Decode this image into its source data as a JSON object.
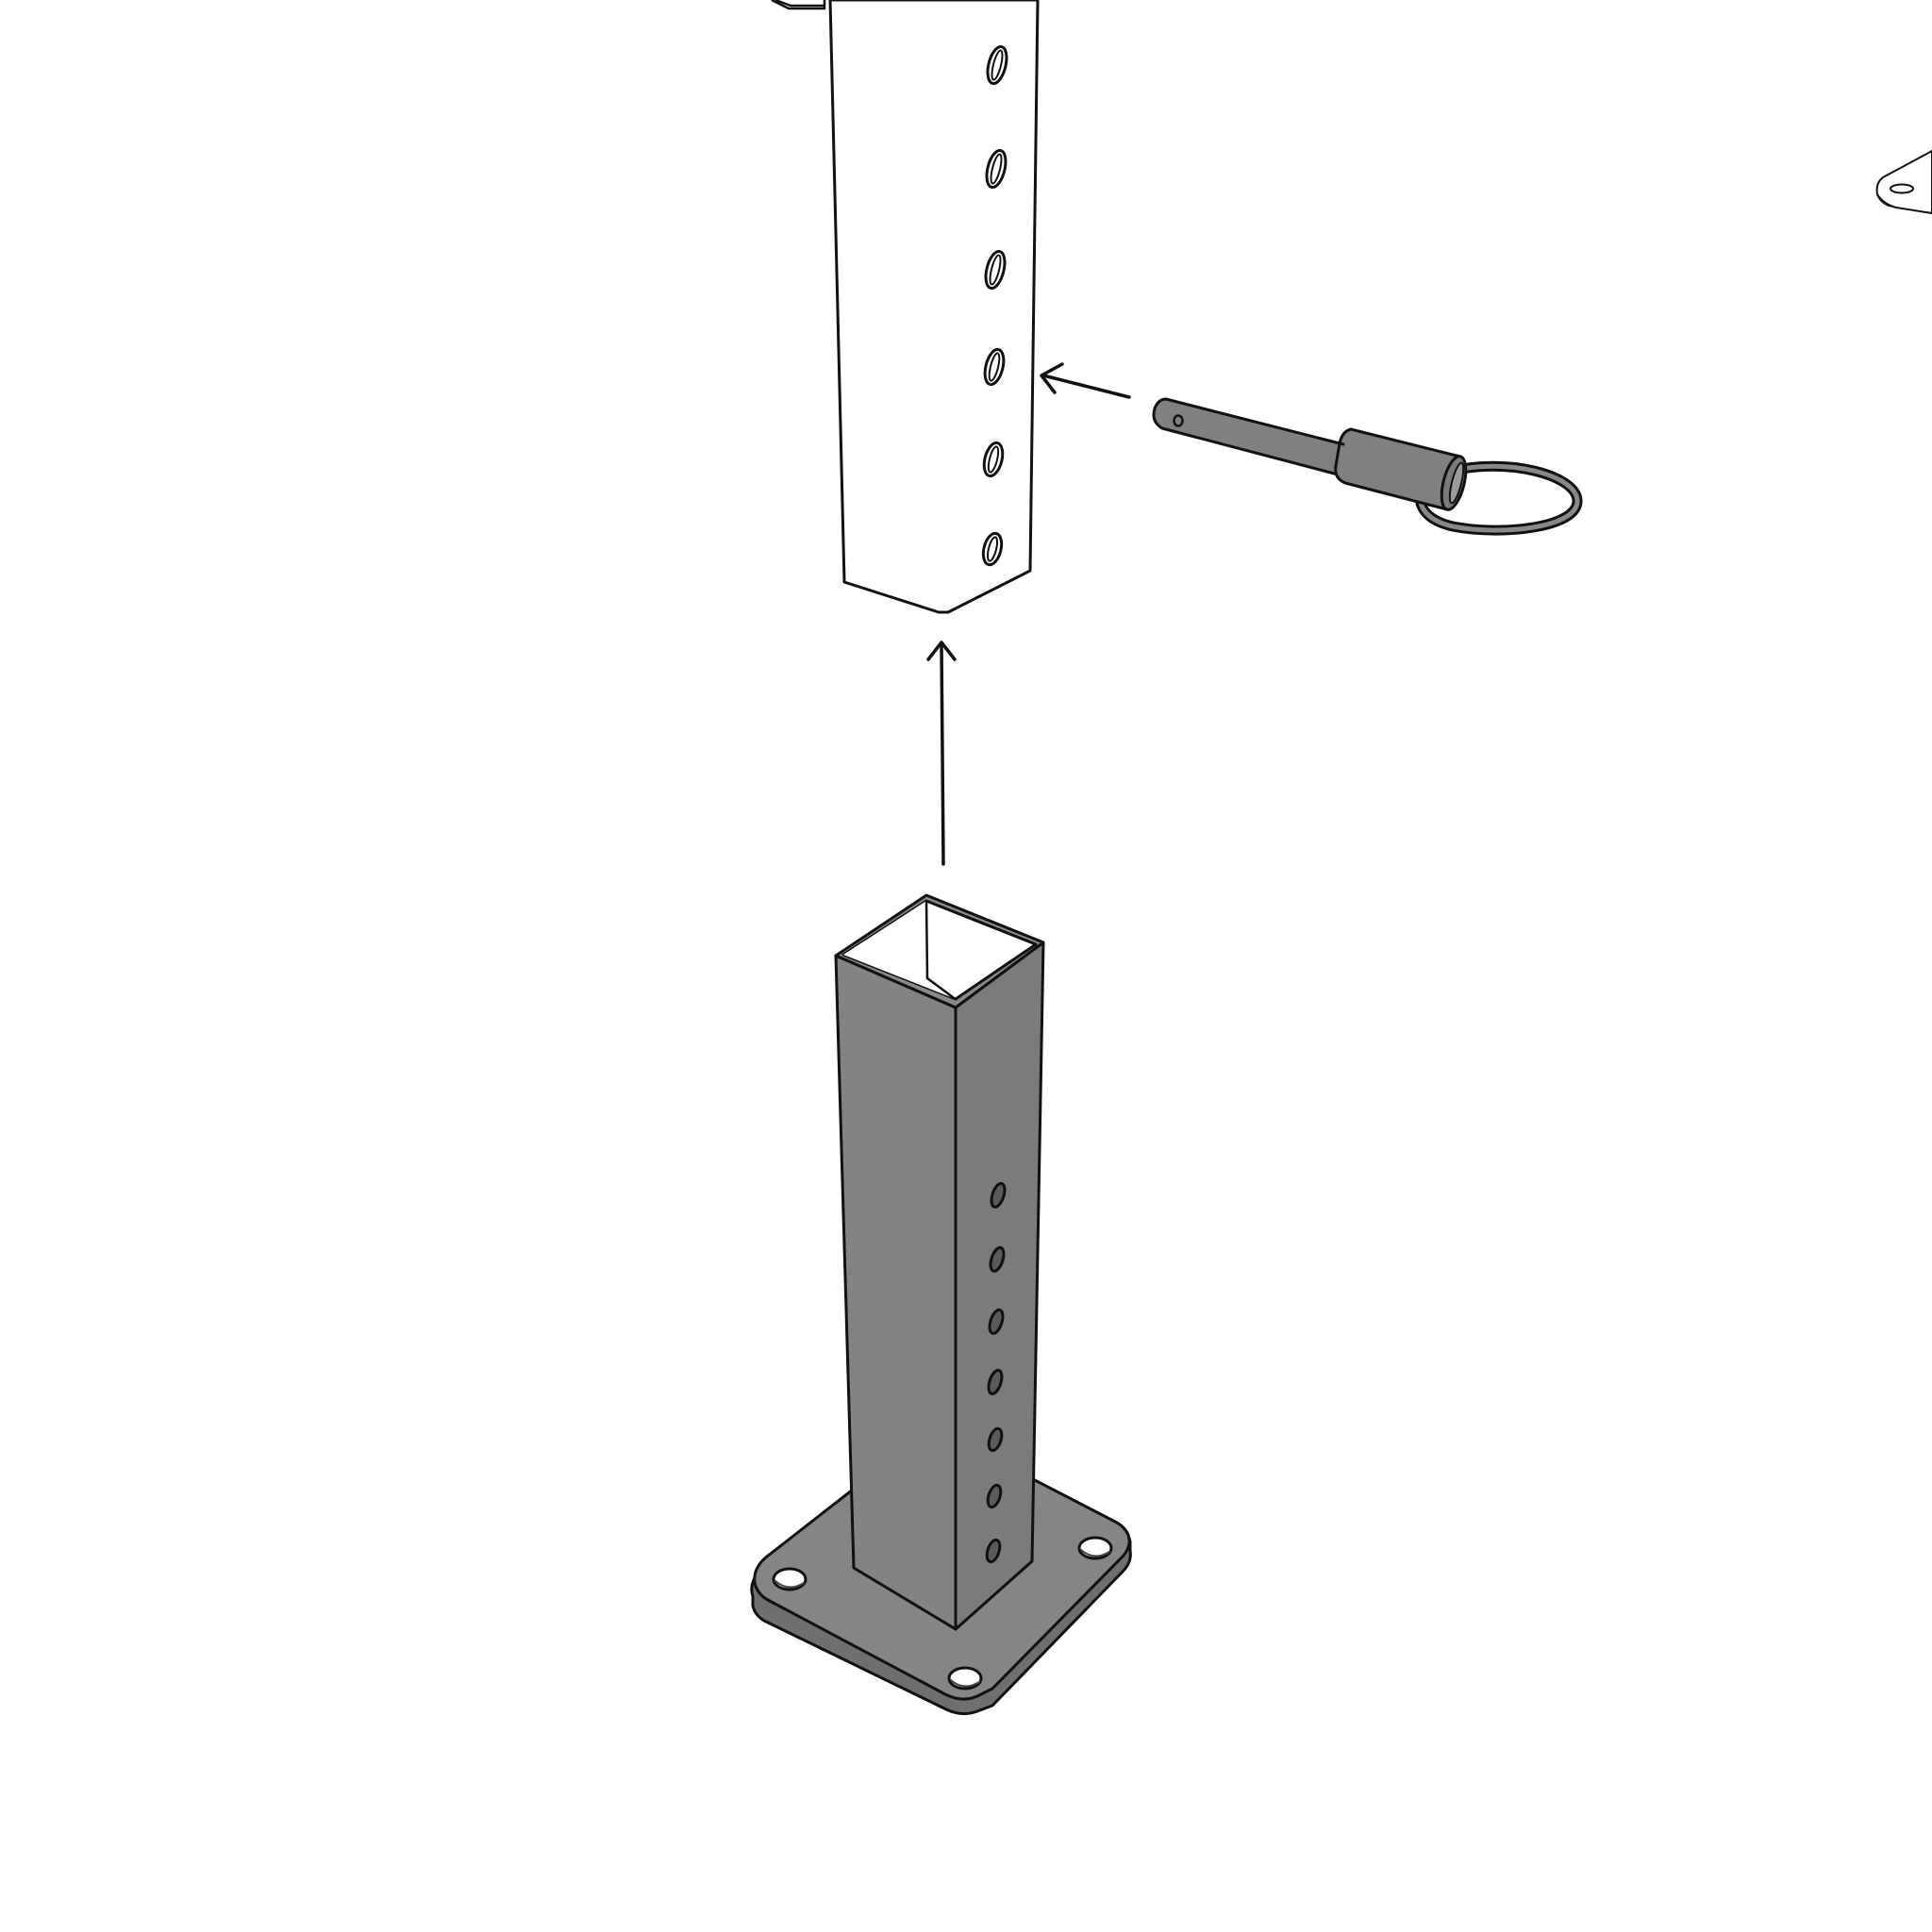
{
  "diagram": {
    "type": "exploded assembly illustration",
    "has_text": false,
    "colors": {
      "background": "#ffffff",
      "outline": "#111111",
      "upper_post": "#ffffff",
      "lower_post_light": "#8a8a8a",
      "lower_post_dark": "#7b7b7b",
      "base_plate": "#858585",
      "pin": "#808080",
      "hole": "#ffffff"
    },
    "parts": [
      {
        "name": "upper-post",
        "fill": "white",
        "visible_holes": 6
      },
      {
        "name": "lower-post",
        "fill": "gray",
        "visible_holes": 7
      },
      {
        "name": "base-plate",
        "mounting_holes": 4
      },
      {
        "name": "lock-pin",
        "has_ring": true
      }
    ],
    "motions": [
      {
        "name": "post-insertion-arrow",
        "icon": "arrow-up-icon"
      },
      {
        "name": "pin-insertion-arrow",
        "icon": "arrow-left-icon"
      }
    ]
  }
}
